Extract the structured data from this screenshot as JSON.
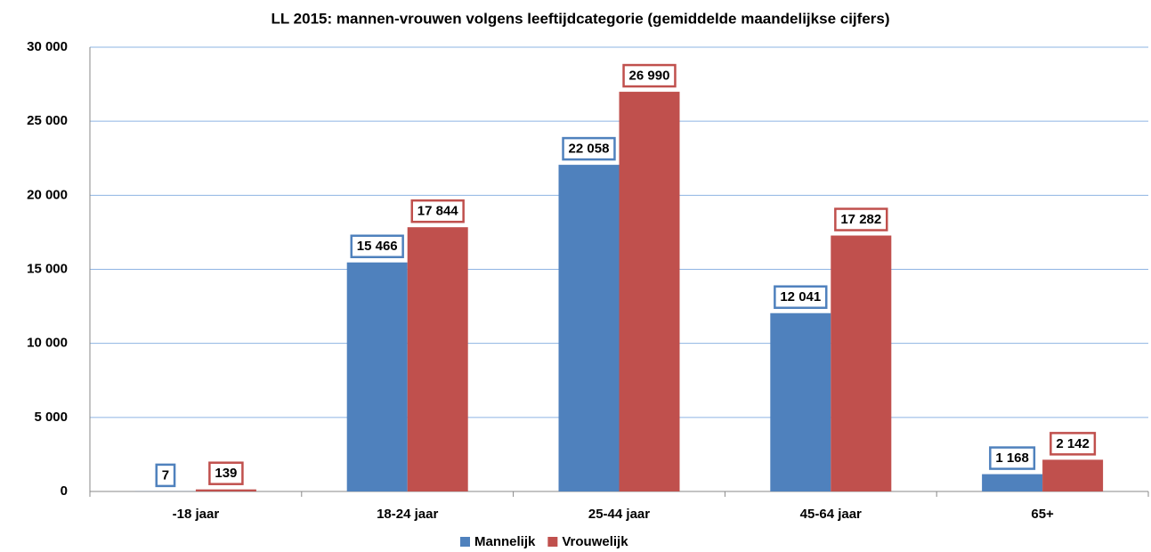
{
  "chart_data": {
    "type": "bar",
    "title": "LL 2015: mannen-vrouwen volgens leeftijdcategorie (gemiddelde maandelijkse cijfers)",
    "categories": [
      "-18 jaar",
      "18-24 jaar",
      "25-44 jaar",
      "45-64 jaar",
      "65+"
    ],
    "series": [
      {
        "name": "Mannelijk",
        "color": "#4f81bd",
        "values": [
          7,
          15466,
          22058,
          12041,
          1168
        ],
        "value_labels": [
          "7",
          "15 466",
          "22 058",
          "12 041",
          "1 168"
        ]
      },
      {
        "name": "Vrouwelijk",
        "color": "#c0504d",
        "values": [
          139,
          17844,
          26990,
          17282,
          2142
        ],
        "value_labels": [
          "139",
          "17 844",
          "26 990",
          "17 282",
          "2 142"
        ]
      }
    ],
    "ylim": [
      0,
      30000
    ],
    "yticks": [
      0,
      {
        "value": 5000,
        "label": "5 000"
      },
      {
        "value": 10000,
        "label": "10 000"
      },
      {
        "value": 15000,
        "label": "15 000"
      },
      {
        "value": 20000,
        "label": "20 000"
      },
      {
        "value": 25000,
        "label": "25 000"
      },
      {
        "value": 30000,
        "label": "30 000"
      }
    ],
    "grid": true,
    "legend": "bottom"
  }
}
